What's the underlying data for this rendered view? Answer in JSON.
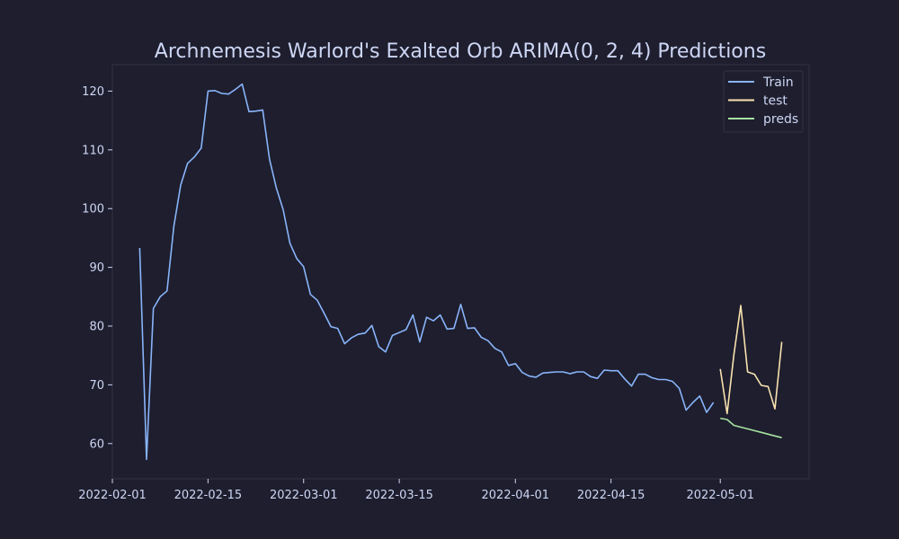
{
  "chart_data": {
    "type": "line",
    "title": "Archnemesis Warlord's Exalted Orb ARIMA(0, 2, 4) Predictions",
    "xlabel": "",
    "ylabel": "",
    "x_type": "date",
    "xlim": [
      "2022-02-01",
      "2022-05-14"
    ],
    "ylim": [
      54,
      124.5
    ],
    "x_ticks": [
      "2022-02-01",
      "2022-02-15",
      "2022-03-01",
      "2022-03-15",
      "2022-04-01",
      "2022-04-15",
      "2022-05-01"
    ],
    "y_ticks": [
      60,
      70,
      80,
      90,
      100,
      110,
      120
    ],
    "grid": false,
    "legend_position": "top-right",
    "colors": {
      "background": "#1e1e2e",
      "axes_edge": "#313244",
      "text": "#cdd6f4",
      "train": "#89b4fa",
      "test": "#f9e2af",
      "preds": "#a6e3a1"
    },
    "series": [
      {
        "name": "Train",
        "color_key": "train",
        "x": [
          "2022-02-05",
          "2022-02-06",
          "2022-02-07",
          "2022-02-08",
          "2022-02-09",
          "2022-02-10",
          "2022-02-11",
          "2022-02-12",
          "2022-02-13",
          "2022-02-14",
          "2022-02-15",
          "2022-02-16",
          "2022-02-17",
          "2022-02-18",
          "2022-02-19",
          "2022-02-20",
          "2022-02-21",
          "2022-02-22",
          "2022-02-23",
          "2022-02-24",
          "2022-02-25",
          "2022-02-26",
          "2022-02-27",
          "2022-02-28",
          "2022-03-01",
          "2022-03-02",
          "2022-03-03",
          "2022-03-04",
          "2022-03-05",
          "2022-03-06",
          "2022-03-07",
          "2022-03-08",
          "2022-03-09",
          "2022-03-10",
          "2022-03-11",
          "2022-03-12",
          "2022-03-13",
          "2022-03-14",
          "2022-03-15",
          "2022-03-16",
          "2022-03-17",
          "2022-03-18",
          "2022-03-19",
          "2022-03-20",
          "2022-03-21",
          "2022-03-22",
          "2022-03-23",
          "2022-03-24",
          "2022-03-25",
          "2022-03-26",
          "2022-03-27",
          "2022-03-28",
          "2022-03-29",
          "2022-03-30",
          "2022-03-31",
          "2022-04-01",
          "2022-04-02",
          "2022-04-03",
          "2022-04-04",
          "2022-04-05",
          "2022-04-06",
          "2022-04-07",
          "2022-04-08",
          "2022-04-09",
          "2022-04-10",
          "2022-04-11",
          "2022-04-12",
          "2022-04-13",
          "2022-04-14",
          "2022-04-15",
          "2022-04-16",
          "2022-04-17",
          "2022-04-18",
          "2022-04-19",
          "2022-04-20",
          "2022-04-21",
          "2022-04-22",
          "2022-04-23",
          "2022-04-24",
          "2022-04-25",
          "2022-04-26",
          "2022-04-27",
          "2022-04-28",
          "2022-04-29",
          "2022-04-30"
        ],
        "y": [
          93.3,
          57.3,
          83.0,
          85.0,
          86.0,
          97.0,
          104.0,
          107.7,
          108.8,
          110.3,
          120.0,
          120.1,
          119.6,
          119.5,
          120.3,
          121.2,
          116.5,
          116.6,
          116.8,
          108.4,
          103.5,
          99.8,
          94.1,
          91.5,
          90.1,
          85.4,
          84.4,
          82.2,
          79.9,
          79.6,
          77.0,
          78.0,
          78.6,
          78.8,
          80.1,
          76.5,
          75.6,
          78.4,
          78.9,
          79.4,
          81.9,
          77.3,
          81.5,
          80.9,
          81.9,
          79.5,
          79.6,
          83.7,
          79.6,
          79.7,
          78.1,
          77.5,
          76.2,
          75.6,
          73.3,
          73.6,
          72.1,
          71.5,
          71.3,
          72.0,
          72.1,
          72.2,
          72.2,
          71.9,
          72.2,
          72.2,
          71.4,
          71.1,
          72.5,
          72.4,
          72.4,
          71.0,
          69.8,
          71.8,
          71.8,
          71.2,
          70.9,
          70.9,
          70.6,
          69.4,
          65.7,
          67.0,
          68.1,
          65.3,
          67.0
        ]
      },
      {
        "name": "test",
        "color_key": "test",
        "x": [
          "2022-05-01",
          "2022-05-02",
          "2022-05-03",
          "2022-05-04",
          "2022-05-05",
          "2022-05-06",
          "2022-05-07",
          "2022-05-08",
          "2022-05-09",
          "2022-05-10"
        ],
        "y": [
          72.7,
          65.1,
          75.2,
          83.5,
          72.2,
          71.8,
          69.9,
          69.7,
          65.9,
          77.3
        ]
      },
      {
        "name": "preds",
        "color_key": "preds",
        "x": [
          "2022-05-01",
          "2022-05-02",
          "2022-05-03",
          "2022-05-04",
          "2022-05-05",
          "2022-05-06",
          "2022-05-07",
          "2022-05-08",
          "2022-05-09",
          "2022-05-10"
        ],
        "y": [
          64.3,
          64.1,
          63.1,
          62.8,
          62.5,
          62.2,
          61.9,
          61.6,
          61.3,
          61.0
        ]
      }
    ]
  }
}
